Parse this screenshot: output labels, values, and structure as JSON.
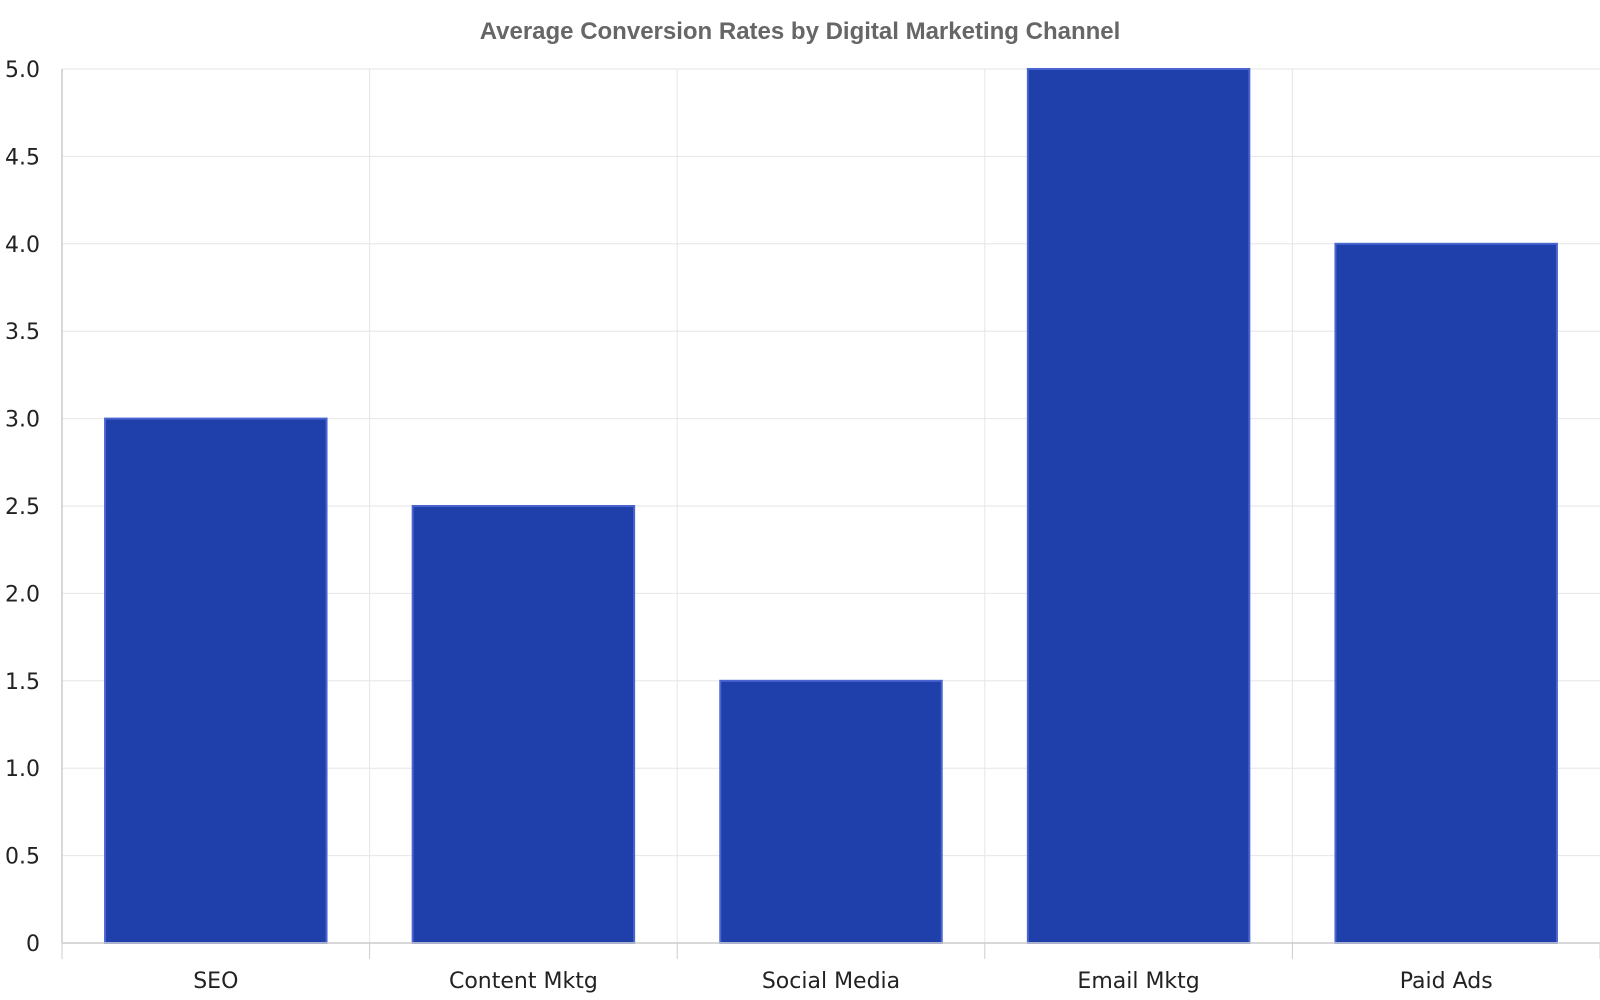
{
  "chart_data": {
    "type": "bar",
    "title": "Average Conversion Rates by Digital Marketing Channel",
    "xlabel": "",
    "ylabel": "",
    "categories": [
      "SEO",
      "Content Mktg",
      "Social Media",
      "Email Mktg",
      "Paid Ads"
    ],
    "values": [
      3.0,
      2.5,
      1.5,
      5.0,
      4.0
    ],
    "ylim": [
      0,
      5
    ],
    "yticks": [
      "0",
      "0.5",
      "1.0",
      "1.5",
      "2.0",
      "2.5",
      "3.0",
      "3.5",
      "4.0",
      "4.5",
      "5.0"
    ],
    "grid": true,
    "bar_color": "#1f3fab",
    "bar_edge_color": "#4a64d0"
  }
}
